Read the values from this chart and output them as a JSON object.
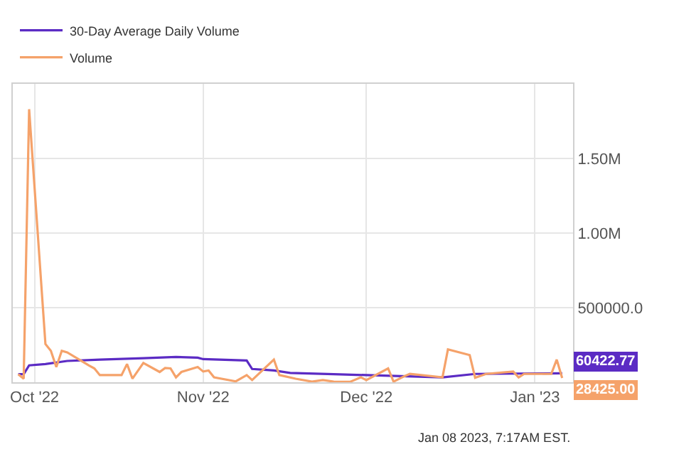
{
  "chart_data": {
    "type": "line",
    "xlim": [
      "2022-09-27",
      "2023-01-08"
    ],
    "xticks": [
      {
        "value": "2022-10-01",
        "label": "Oct '22"
      },
      {
        "value": "2022-11-01",
        "label": "Nov '22"
      },
      {
        "value": "2022-12-01",
        "label": "Dec '22"
      },
      {
        "value": "2023-01-01",
        "label": "Jan '23"
      }
    ],
    "ylim": [
      0,
      2000000
    ],
    "yticks": [
      {
        "value": 500000,
        "label": "500000.0"
      },
      {
        "value": 1000000,
        "label": "1.00M"
      },
      {
        "value": 1500000,
        "label": "1.50M"
      }
    ],
    "grid": true,
    "legend": "top left",
    "marker": "none",
    "line_style": "solid",
    "annotations": [
      "Jan 08 2023, 7:17AM EST."
    ],
    "series": [
      {
        "name": "30-Day Average Daily Volume",
        "color": "#5b2bc4",
        "x": [
          "2022-09-28",
          "2022-09-29",
          "2022-09-30",
          "2022-10-03",
          "2022-10-07",
          "2022-10-13",
          "2022-10-21",
          "2022-10-27",
          "2022-10-31",
          "2022-11-01",
          "2022-11-09",
          "2022-11-10",
          "2022-11-14",
          "2022-11-17",
          "2022-11-25",
          "2022-12-01",
          "2022-12-15",
          "2022-12-21",
          "2023-01-06"
        ],
        "values": [
          54000,
          54000,
          113000,
          122000,
          143000,
          152000,
          161000,
          170000,
          165000,
          155000,
          146000,
          89000,
          79000,
          63000,
          54000,
          48000,
          33000,
          56000,
          60422.77
        ],
        "value_labels": [
          null,
          null,
          null,
          null,
          null,
          null,
          null,
          null,
          null,
          null,
          null,
          null,
          null,
          null,
          null,
          null,
          null,
          null,
          "60422.77"
        ]
      },
      {
        "name": "Volume",
        "color": "#f5a26a",
        "x": [
          "2022-09-28",
          "2022-09-29",
          "2022-09-30",
          "2022-10-03",
          "2022-10-04",
          "2022-10-05",
          "2022-10-06",
          "2022-10-07",
          "2022-10-11",
          "2022-10-12",
          "2022-10-13",
          "2022-10-17",
          "2022-10-18",
          "2022-10-19",
          "2022-10-21",
          "2022-10-24",
          "2022-10-25",
          "2022-10-26",
          "2022-10-27",
          "2022-10-28",
          "2022-10-31",
          "2022-11-01",
          "2022-11-02",
          "2022-11-03",
          "2022-11-07",
          "2022-11-09",
          "2022-11-10",
          "2022-11-14",
          "2022-11-15",
          "2022-11-18",
          "2022-11-21",
          "2022-11-23",
          "2022-11-25",
          "2022-11-28",
          "2022-11-30",
          "2022-12-01",
          "2022-12-05",
          "2022-12-06",
          "2022-12-08",
          "2022-12-09",
          "2022-12-15",
          "2022-12-16",
          "2022-12-20",
          "2022-12-21",
          "2022-12-23",
          "2022-12-28",
          "2022-12-29",
          "2022-12-30",
          "2023-01-04",
          "2023-01-05",
          "2023-01-06"
        ],
        "values": [
          54000,
          24000,
          1830000,
          256000,
          211000,
          102000,
          211000,
          200000,
          113000,
          93000,
          48000,
          48000,
          122000,
          24000,
          129000,
          69000,
          96000,
          93000,
          33000,
          69000,
          102000,
          72000,
          79000,
          33000,
          6000,
          48000,
          15000,
          152000,
          48000,
          24000,
          4000,
          15000,
          4000,
          3000,
          33000,
          15000,
          93000,
          4000,
          41000,
          56000,
          33000,
          220000,
          182000,
          30000,
          56000,
          72000,
          33000,
          56000,
          56000,
          152000,
          28425.0
        ],
        "value_labels": [
          null,
          null,
          null,
          null,
          null,
          null,
          null,
          null,
          null,
          null,
          null,
          null,
          null,
          null,
          null,
          null,
          null,
          null,
          null,
          null,
          null,
          null,
          null,
          null,
          null,
          null,
          null,
          null,
          null,
          null,
          null,
          null,
          null,
          null,
          null,
          null,
          null,
          null,
          null,
          null,
          null,
          null,
          null,
          null,
          null,
          null,
          null,
          null,
          null,
          null,
          "28425.00"
        ]
      }
    ]
  }
}
